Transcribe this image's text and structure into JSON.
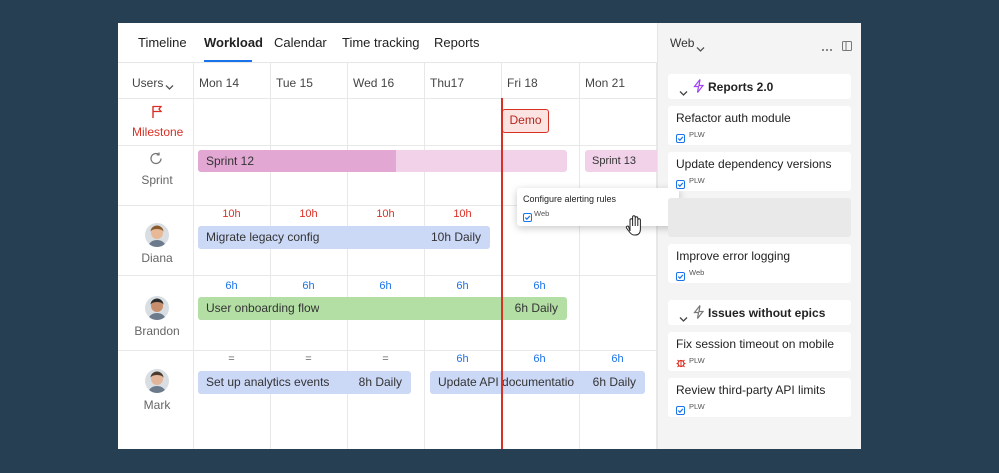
{
  "tabs": [
    "Timeline",
    "Workload",
    "Calendar",
    "Time tracking",
    "Reports"
  ],
  "active_tab": 1,
  "grid": {
    "user_filter": "Users",
    "days": [
      "Mon 14",
      "Tue 15",
      "Wed 16",
      "Thu17",
      "Fri 18",
      "Mon 21"
    ],
    "milestone": {
      "label": "Milestone",
      "markers": [
        "Demo"
      ]
    },
    "sprint": {
      "label": "Sprint",
      "bars": [
        "Sprint 12",
        "Sprint 13"
      ]
    },
    "users": [
      {
        "name": "Diana",
        "hours_color": "#d93025",
        "hours": [
          "10h",
          "10h",
          "10h",
          "10h",
          null,
          null
        ],
        "tasks": [
          {
            "title": "Migrate legacy config",
            "daily": "10h Daily",
            "color": "#cbd8f6"
          }
        ]
      },
      {
        "name": "Brandon",
        "hours_color": "#1a73e8",
        "hours": [
          "6h",
          "6h",
          "6h",
          "6h",
          "6h",
          null
        ],
        "tasks": [
          {
            "title": "User onboarding flow",
            "daily": "6h Daily",
            "color": "#b3dfa5"
          }
        ]
      },
      {
        "name": "Mark",
        "hours_color": "#1a73e8",
        "hours": [
          "=",
          "=",
          "=",
          "6h",
          "6h",
          "6h"
        ],
        "tasks": [
          {
            "title": "Set up analytics events",
            "daily": "8h Daily",
            "color": "#cbd8f6"
          },
          {
            "title": "Update API documentatio",
            "daily": "6h Daily",
            "color": "#cbd8f6"
          }
        ]
      }
    ],
    "drag_card": {
      "title": "Configure alerting rules",
      "tag": "Web"
    }
  },
  "side_panel": {
    "filter": "Web",
    "groups": [
      {
        "title": "Reports 2.0",
        "items": [
          {
            "title": "Refactor auth module",
            "tag": "PLW"
          },
          {
            "title": "Update dependency versions",
            "tag": "PLW"
          },
          {
            "title": "Improve error logging",
            "tag": "Web"
          }
        ]
      },
      {
        "title": "Issues without epics",
        "items": [
          {
            "title": "Fix session timeout on mobile",
            "tag": "PLW"
          },
          {
            "title": "Review third-party API limits",
            "tag": "PLW"
          }
        ]
      }
    ]
  }
}
